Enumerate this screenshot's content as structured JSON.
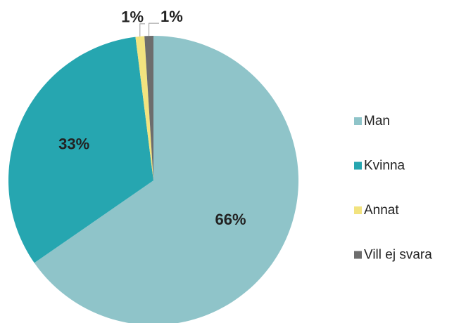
{
  "chart_data": {
    "type": "pie",
    "categories": [
      "Man",
      "Kvinna",
      "Annat",
      "Vill ej svara"
    ],
    "values": [
      66,
      33,
      1,
      1
    ],
    "value_labels": [
      "66%",
      "33%",
      "1%",
      "1%"
    ],
    "colors": [
      "#8fc4c9",
      "#26a6b0",
      "#f2e37f",
      "#6d6d6d"
    ],
    "legend": "right"
  }
}
